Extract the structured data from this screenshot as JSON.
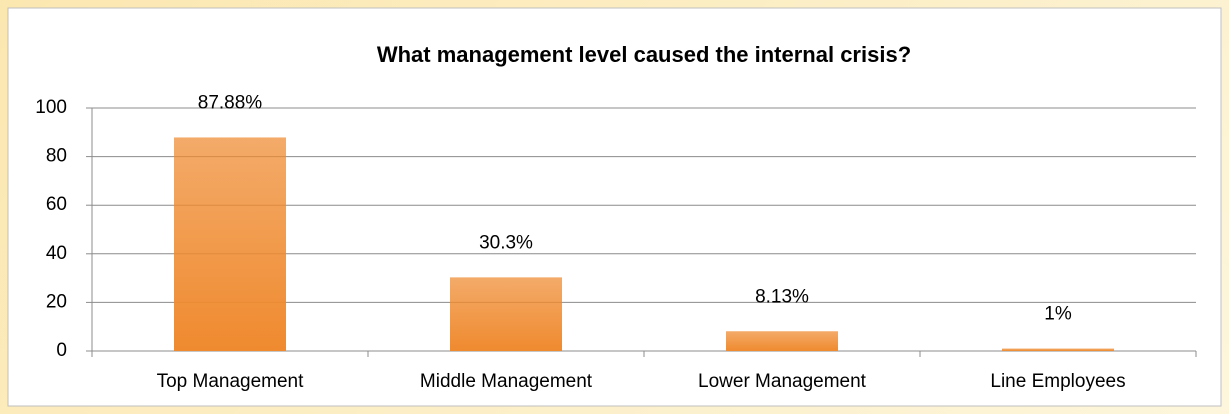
{
  "chart_data": {
    "type": "bar",
    "title": "What management level caused the internal crisis?",
    "categories": [
      "Top Management",
      "Middle Management",
      "Lower Management",
      "Line Employees"
    ],
    "values": [
      87.88,
      30.3,
      8.13,
      1
    ],
    "value_labels": [
      "87.88%",
      "30.3%",
      "8.13%",
      "1%"
    ],
    "color": "#ef8a2f",
    "ylim": [
      0,
      100
    ],
    "yticks": [
      0,
      20,
      40,
      60,
      80,
      100
    ],
    "grid": true
  }
}
